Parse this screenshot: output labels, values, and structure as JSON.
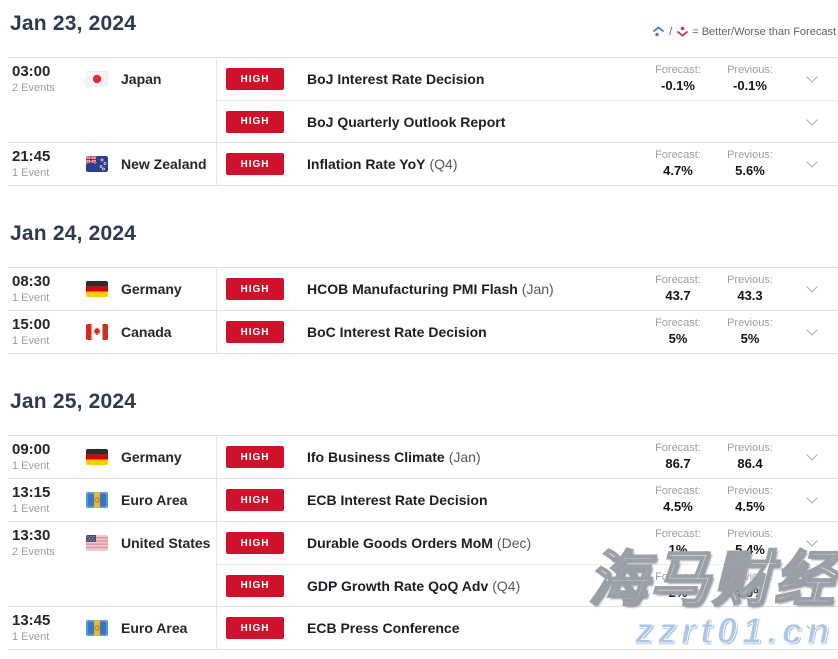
{
  "legend": {
    "better_icon": "better-up-arrow-icon",
    "worse_icon": "worse-down-arrow-icon",
    "separator": "/",
    "text": "= Better/Worse than Forecast"
  },
  "labels": {
    "forecast": "Forecast:",
    "previous": "Previous:"
  },
  "colors": {
    "badge_high": "#d0112b",
    "date_header": "#2d3a50",
    "better_blue": "#4a7fc1",
    "worse_red": "#c13a52"
  },
  "watermark": {
    "line1": "海马财经",
    "line2": "zzrt01.cn"
  },
  "sections": [
    {
      "date": "Jan 23, 2024",
      "groups": [
        {
          "time": "03:00",
          "events_count": "2 Events",
          "country": "Japan",
          "flag": "japan",
          "events": [
            {
              "importance": "HIGH",
              "title": "BoJ Interest Rate Decision",
              "qualifier": "",
              "forecast": "-0.1%",
              "previous": "-0.1%"
            },
            {
              "importance": "HIGH",
              "title": "BoJ Quarterly Outlook Report",
              "qualifier": "",
              "forecast": "",
              "previous": ""
            }
          ]
        },
        {
          "time": "21:45",
          "events_count": "1 Event",
          "country": "New Zealand",
          "flag": "new-zealand",
          "events": [
            {
              "importance": "HIGH",
              "title": "Inflation Rate YoY",
              "qualifier": "(Q4)",
              "forecast": "4.7%",
              "previous": "5.6%"
            }
          ]
        }
      ]
    },
    {
      "date": "Jan 24, 2024",
      "groups": [
        {
          "time": "08:30",
          "events_count": "1 Event",
          "country": "Germany",
          "flag": "germany",
          "events": [
            {
              "importance": "HIGH",
              "title": "HCOB Manufacturing PMI Flash",
              "qualifier": "(Jan)",
              "forecast": "43.7",
              "previous": "43.3"
            }
          ]
        },
        {
          "time": "15:00",
          "events_count": "1 Event",
          "country": "Canada",
          "flag": "canada",
          "events": [
            {
              "importance": "HIGH",
              "title": "BoC Interest Rate Decision",
              "qualifier": "",
              "forecast": "5%",
              "previous": "5%"
            }
          ]
        }
      ]
    },
    {
      "date": "Jan 25, 2024",
      "groups": [
        {
          "time": "09:00",
          "events_count": "1 Event",
          "country": "Germany",
          "flag": "germany",
          "events": [
            {
              "importance": "HIGH",
              "title": "Ifo Business Climate",
              "qualifier": "(Jan)",
              "forecast": "86.7",
              "previous": "86.4"
            }
          ]
        },
        {
          "time": "13:15",
          "events_count": "1 Event",
          "country": "Euro Area",
          "flag": "euro-area",
          "events": [
            {
              "importance": "HIGH",
              "title": "ECB Interest Rate Decision",
              "qualifier": "",
              "forecast": "4.5%",
              "previous": "4.5%"
            }
          ]
        },
        {
          "time": "13:30",
          "events_count": "2 Events",
          "country": "United States",
          "flag": "united-states",
          "events": [
            {
              "importance": "HIGH",
              "title": "Durable Goods Orders MoM",
              "qualifier": "(Dec)",
              "forecast": "1%",
              "previous": "5.4%"
            },
            {
              "importance": "HIGH",
              "title": "GDP Growth Rate QoQ Adv",
              "qualifier": "(Q4)",
              "forecast": "2%",
              "previous": "4.9%"
            }
          ]
        },
        {
          "time": "13:45",
          "events_count": "1 Event",
          "country": "Euro Area",
          "flag": "euro-area",
          "events": [
            {
              "importance": "HIGH",
              "title": "ECB Press Conference",
              "qualifier": "",
              "forecast": "",
              "previous": ""
            }
          ]
        }
      ]
    }
  ]
}
